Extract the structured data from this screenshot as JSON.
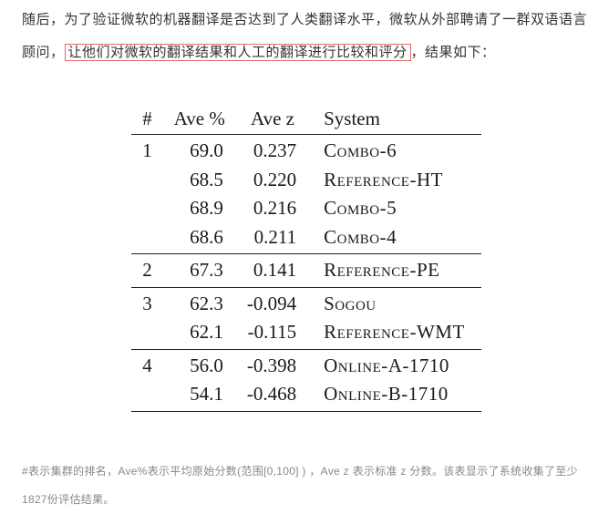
{
  "intro": {
    "before": "随后，为了验证微软的机器翻译是否达到了人类翻译水平，微软从外部聘请了一群双语语言顾问，",
    "highlight": "让他们对微软的翻译结果和人工的翻译进行比较和评分",
    "after": "，结果如下："
  },
  "table": {
    "headers": {
      "rank": "#",
      "pct": "Ave %",
      "z": "Ave z",
      "sys": "System"
    },
    "groups": [
      {
        "rank": "1",
        "rows": [
          {
            "pct": "69.0",
            "z": "0.237",
            "sys": "Combo-6"
          },
          {
            "pct": "68.5",
            "z": "0.220",
            "sys": "Reference-HT"
          },
          {
            "pct": "68.9",
            "z": "0.216",
            "sys": "Combo-5"
          },
          {
            "pct": "68.6",
            "z": "0.211",
            "sys": "Combo-4"
          }
        ]
      },
      {
        "rank": "2",
        "rows": [
          {
            "pct": "67.3",
            "z": "0.141",
            "sys": "Reference-PE"
          }
        ]
      },
      {
        "rank": "3",
        "rows": [
          {
            "pct": "62.3",
            "z": "-0.094",
            "sys": "Sogou"
          },
          {
            "pct": "62.1",
            "z": "-0.115",
            "sys": "Reference-WMT"
          }
        ]
      },
      {
        "rank": "4",
        "rows": [
          {
            "pct": "56.0",
            "z": "-0.398",
            "sys": "Online-A-1710"
          },
          {
            "pct": "54.1",
            "z": "-0.468",
            "sys": "Online-B-1710"
          }
        ]
      }
    ]
  },
  "footnote": "#表示集群的排名，Ave%表示平均原始分数(范围[0,100] ) ，Ave z 表示标准 z 分数。该表显示了系统收集了至少1827份评估结果。"
}
